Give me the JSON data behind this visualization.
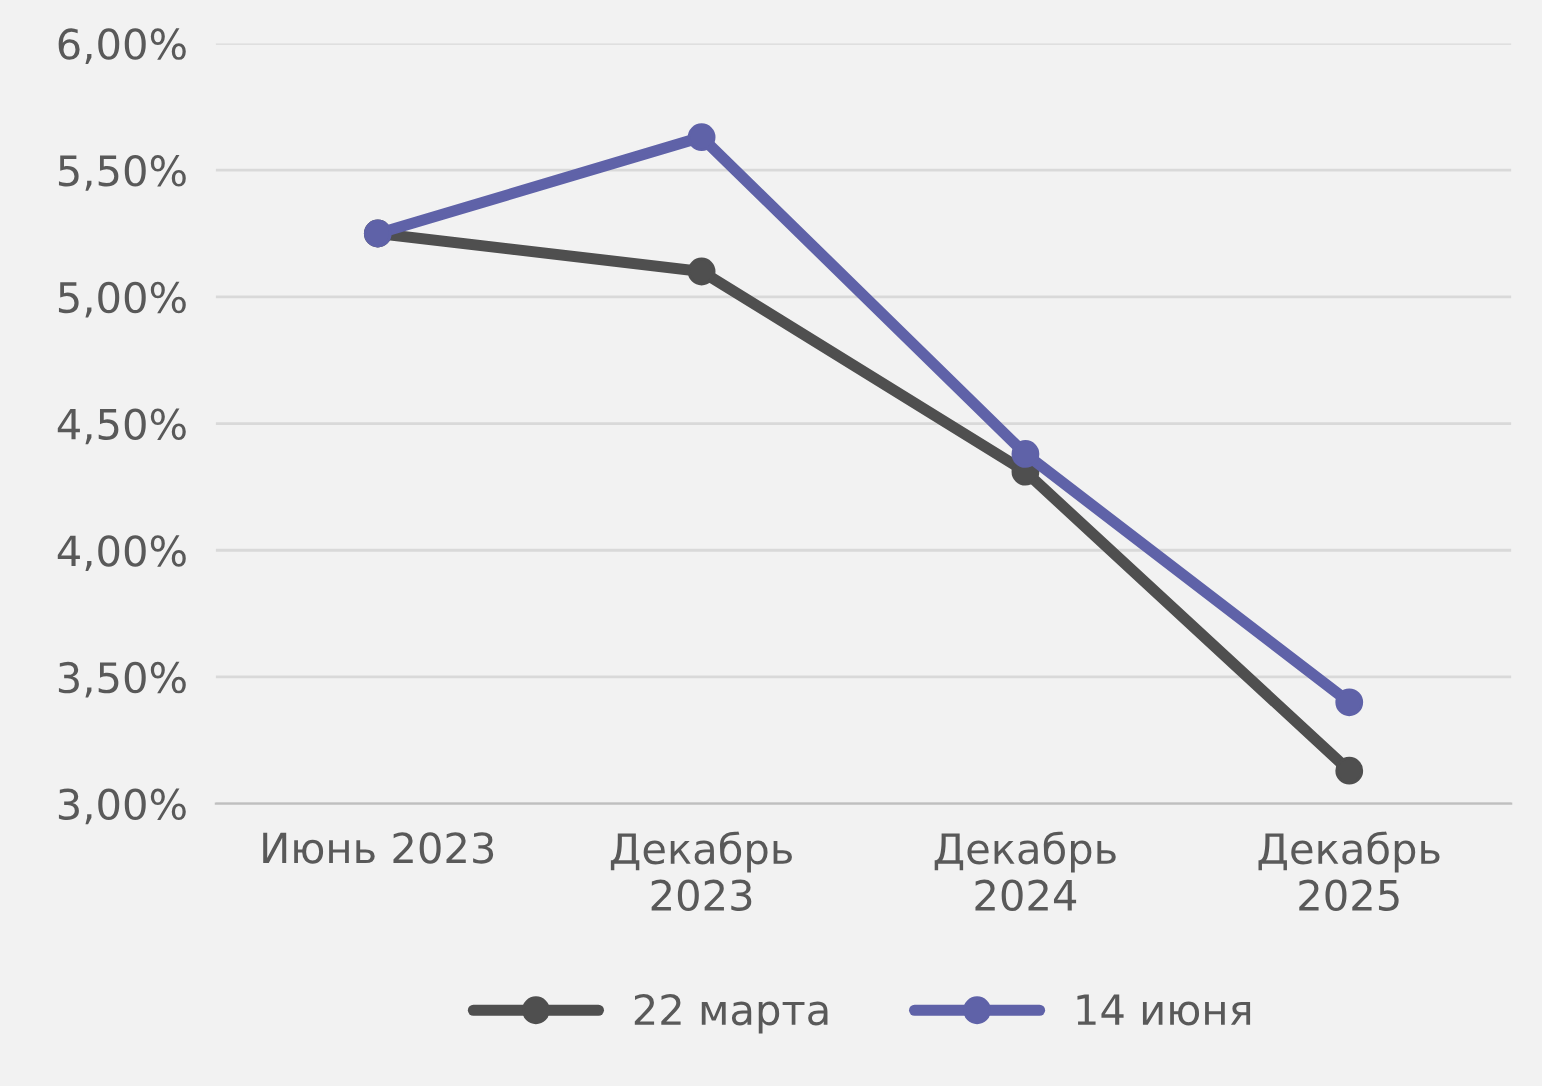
{
  "chart_data": {
    "type": "line",
    "categories": [
      "Июнь 2023",
      "Декабрь\n2023",
      "Декабрь\n2024",
      "Декабрь\n2025"
    ],
    "series": [
      {
        "name": "22 марта",
        "color": "#4f4f4f",
        "values": [
          5.25,
          5.1,
          4.31,
          3.13
        ]
      },
      {
        "name": "14 июня",
        "color": "#5f62a8",
        "values": [
          5.25,
          5.63,
          4.38,
          3.4
        ]
      }
    ],
    "ylim": [
      3.0,
      6.0
    ],
    "yticks": [
      {
        "value": 3.0,
        "label": "3,00%"
      },
      {
        "value": 3.5,
        "label": "3,50%"
      },
      {
        "value": 4.0,
        "label": "4,00%"
      },
      {
        "value": 4.5,
        "label": "4,50%"
      },
      {
        "value": 5.0,
        "label": "5,00%"
      },
      {
        "value": 5.5,
        "label": "5,50%"
      },
      {
        "value": 6.0,
        "label": "6,00%"
      }
    ],
    "grid": "y",
    "legend": "bottom",
    "marker": "circle",
    "line_style": "solid"
  }
}
